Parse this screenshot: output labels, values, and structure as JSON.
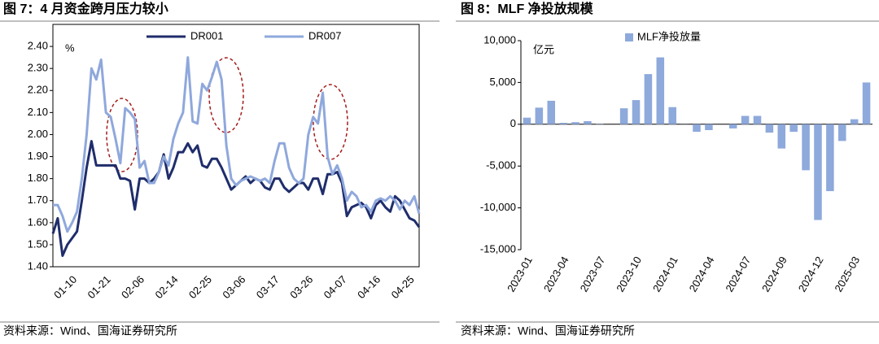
{
  "chart_data": [
    {
      "type": "line",
      "title": "图 7：4 月资金跨月压力较小",
      "ylabel": "%",
      "source": "资料来源：Wind、国海证券研究所",
      "categories": [
        null,
        null,
        null,
        null,
        "01-10",
        null,
        null,
        null,
        null,
        null,
        null,
        "01-21",
        null,
        null,
        null,
        null,
        null,
        null,
        "02-06",
        null,
        null,
        null,
        null,
        null,
        null,
        "02-14",
        null,
        null,
        null,
        null,
        null,
        null,
        "02-25",
        null,
        null,
        null,
        null,
        null,
        null,
        "03-06",
        null,
        null,
        null,
        null,
        null,
        null,
        "03-17",
        null,
        null,
        null,
        null,
        null,
        null,
        "03-26",
        null,
        null,
        null,
        null,
        null,
        null,
        "04-07",
        null,
        null,
        null,
        null,
        null,
        null,
        "04-16",
        null,
        null,
        null,
        null,
        null,
        null,
        "04-25",
        null,
        null
      ],
      "series": [
        {
          "name": "DR001",
          "color": "#1f2d6b",
          "values": [
            1.55,
            1.62,
            1.45,
            1.5,
            1.53,
            1.56,
            1.7,
            1.85,
            1.97,
            1.86,
            1.86,
            1.86,
            1.86,
            1.86,
            1.8,
            1.8,
            1.79,
            1.66,
            1.8,
            1.8,
            1.78,
            1.8,
            1.83,
            1.91,
            1.8,
            1.85,
            1.92,
            1.92,
            1.96,
            1.92,
            1.95,
            1.86,
            1.85,
            1.89,
            1.89,
            1.85,
            1.8,
            1.75,
            1.77,
            1.79,
            1.81,
            1.78,
            1.8,
            1.79,
            1.76,
            1.75,
            1.8,
            1.8,
            1.76,
            1.74,
            1.76,
            1.78,
            1.78,
            1.75,
            1.8,
            1.8,
            1.73,
            1.82,
            1.82,
            1.83,
            1.78,
            1.63,
            1.67,
            1.68,
            1.69,
            1.67,
            1.62,
            1.68,
            1.7,
            1.67,
            1.65,
            1.72,
            1.7,
            1.66,
            1.62,
            1.61,
            1.58
          ]
        },
        {
          "name": "DR007",
          "color": "#8fa8dc",
          "values": [
            1.68,
            1.68,
            1.63,
            1.56,
            1.6,
            1.65,
            1.8,
            2.0,
            2.3,
            2.25,
            2.34,
            2.1,
            2.08,
            1.98,
            1.87,
            2.12,
            2.1,
            2.07,
            1.85,
            1.88,
            1.78,
            1.78,
            1.83,
            1.9,
            1.86,
            1.98,
            2.05,
            2.1,
            2.35,
            2.06,
            2.05,
            2.23,
            2.2,
            2.26,
            2.33,
            2.25,
            1.95,
            1.8,
            1.77,
            1.79,
            1.8,
            1.81,
            1.8,
            1.79,
            1.8,
            1.78,
            1.88,
            1.96,
            1.96,
            1.85,
            1.8,
            1.78,
            1.8,
            2.0,
            2.08,
            2.05,
            2.19,
            1.9,
            1.82,
            1.86,
            1.8,
            1.7,
            1.74,
            1.72,
            1.67,
            1.68,
            1.65,
            1.7,
            1.71,
            1.7,
            1.72,
            1.7,
            1.66,
            1.7,
            1.68,
            1.72,
            1.64
          ]
        }
      ],
      "ylim": [
        1.4,
        2.5
      ],
      "yticks": [
        {
          "value": 1.4,
          "label": "1.40"
        },
        {
          "value": 1.5,
          "label": "1.50"
        },
        {
          "value": 1.6,
          "label": "1.60"
        },
        {
          "value": 1.7,
          "label": "1.70"
        },
        {
          "value": 1.8,
          "label": "1.80"
        },
        {
          "value": 1.9,
          "label": "1.90"
        },
        {
          "value": 2.0,
          "label": "2.00"
        },
        {
          "value": 2.1,
          "label": "2.10"
        },
        {
          "value": 2.2,
          "label": "2.20"
        },
        {
          "value": 2.3,
          "label": "2.30"
        },
        {
          "value": 2.4,
          "label": "2.40"
        }
      ]
    },
    {
      "type": "bar",
      "title": "图 8：MLF 净投放规模",
      "ylabel": "亿元",
      "source": "资料来源：Wind、国海证券研究所",
      "categories": [
        "2023-01",
        null,
        null,
        "2023-04",
        null,
        null,
        "2023-07",
        null,
        null,
        "2023-10",
        null,
        null,
        "2024-01",
        null,
        null,
        "2024-04",
        null,
        null,
        "2024-07",
        null,
        null,
        "2024-09",
        null,
        null,
        "2024-12",
        null,
        null,
        "2025-03",
        null
      ],
      "series": [
        {
          "name": "MLF净投放量",
          "color": "#8ea9db",
          "values": [
            790,
            1990,
            2810,
            170,
            250,
            370,
            30,
            0,
            1910,
            2890,
            6000,
            8000,
            2050,
            10,
            -900,
            -700,
            0,
            -500,
            1000,
            1000,
            -1000,
            -2900,
            -900,
            -5500,
            -11450,
            -8000,
            -2000,
            600,
            5000
          ]
        }
      ],
      "ylim": [
        -15000,
        10000
      ],
      "yticks": [
        {
          "value": -15000,
          "label": "-15,000"
        },
        {
          "value": -10000,
          "label": "-10,000"
        },
        {
          "value": -5000,
          "label": "-5,000"
        },
        0,
        {
          "value": 5000,
          "label": "5,000"
        },
        {
          "value": 10000,
          "label": "10,000"
        }
      ]
    }
  ]
}
